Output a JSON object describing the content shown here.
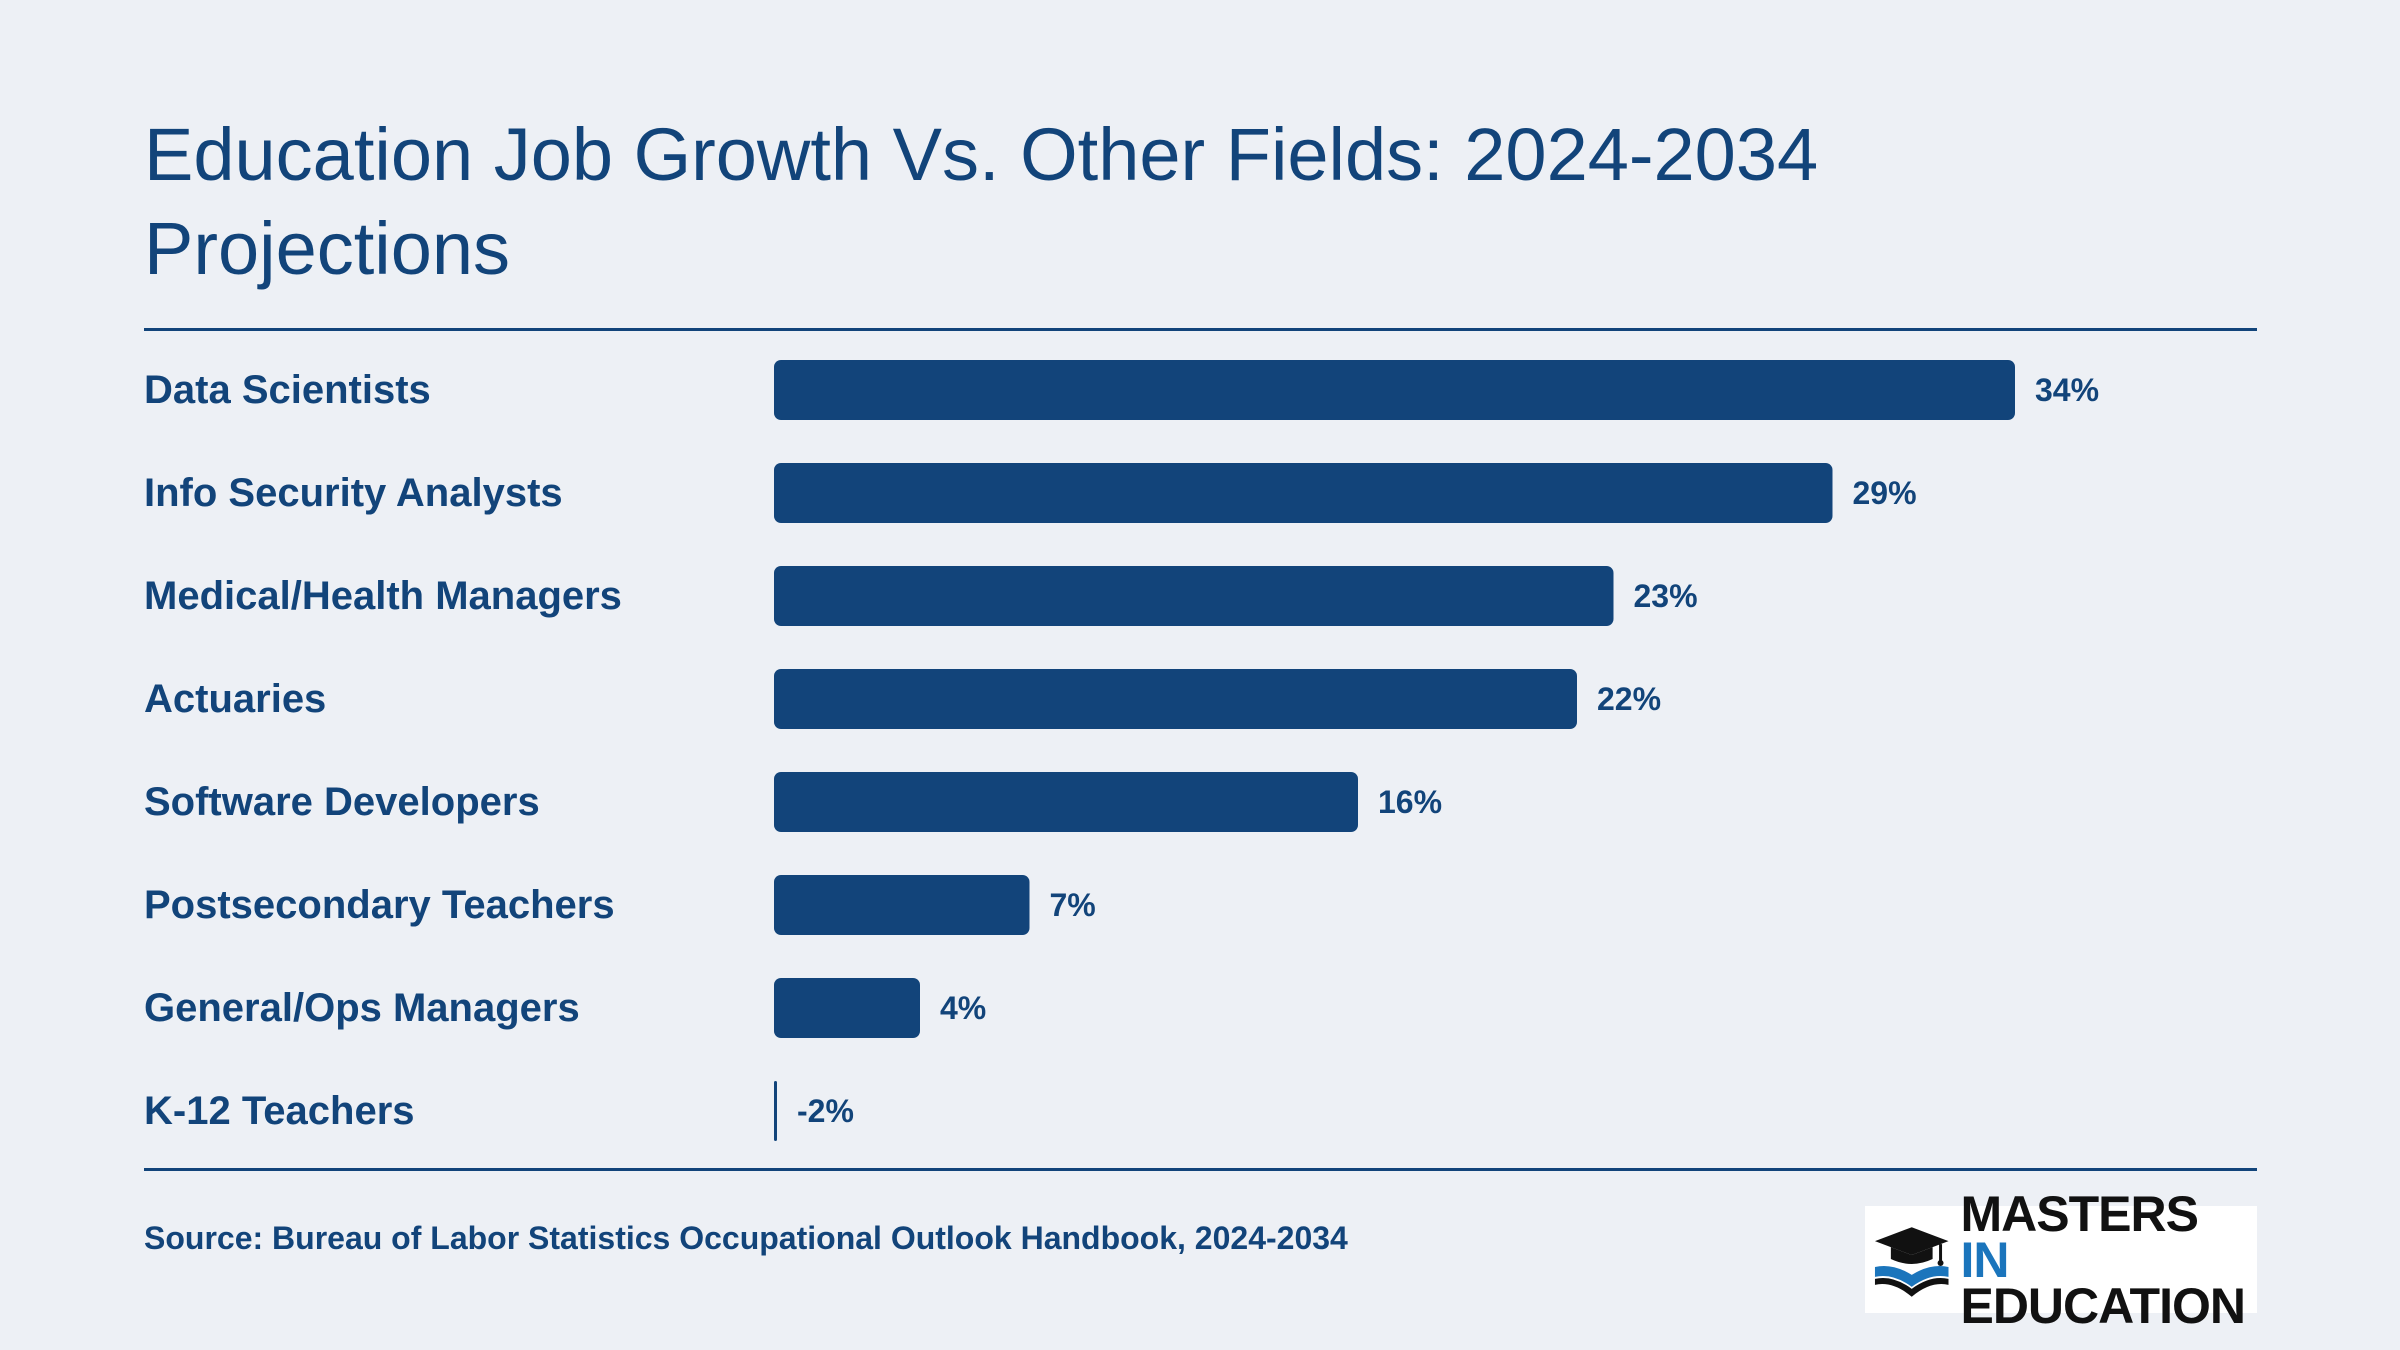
{
  "chart_data": {
    "type": "bar",
    "orientation": "horizontal",
    "title": "Education Job Growth Vs. Other Fields: 2024-2034 Projections",
    "categories": [
      "Data Scientists",
      "Info Security Analysts",
      "Medical/Health Managers",
      "Actuaries",
      "Software Developers",
      "Postsecondary Teachers",
      "General/Ops Managers",
      "K-12 Teachers"
    ],
    "values": [
      34,
      29,
      23,
      22,
      16,
      7,
      4,
      -2
    ],
    "value_labels": [
      "34%",
      "29%",
      "23%",
      "22%",
      "16%",
      "7%",
      "4%",
      "-2%"
    ],
    "xlim": [
      0,
      40
    ],
    "grid": false,
    "color": "#12447a"
  },
  "footer": {
    "source": "Source: Bureau of Labor Statistics Occupational Outlook Handbook, 2024-2034",
    "logo_line1": "MASTERS",
    "logo_accent": "IN",
    "logo_line2": "EDUCATION",
    "logo_icon": "graduation-cap-book-icon"
  }
}
